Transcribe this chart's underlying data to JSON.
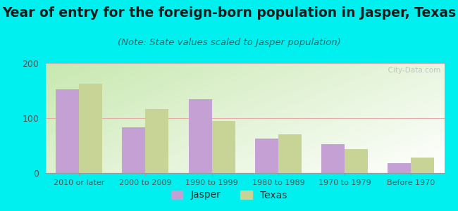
{
  "title": "Year of entry for the foreign-born population in Jasper, Texas",
  "subtitle": "(Note: State values scaled to Jasper population)",
  "categories": [
    "2010 or later",
    "2000 to 2009",
    "1990 to 1999",
    "1980 to 1989",
    "1970 to 1979",
    "Before 1970"
  ],
  "jasper_values": [
    152,
    83,
    135,
    63,
    53,
    18
  ],
  "texas_values": [
    163,
    117,
    95,
    70,
    43,
    28
  ],
  "jasper_color": "#c4a0d4",
  "texas_color": "#c8d496",
  "background_color": "#00f0f0",
  "ylim": [
    0,
    200
  ],
  "yticks": [
    0,
    100,
    200
  ],
  "bar_width": 0.35,
  "title_fontsize": 13.5,
  "subtitle_fontsize": 9.5,
  "tick_color": "#555555",
  "watermark_text": "  City-Data.com"
}
